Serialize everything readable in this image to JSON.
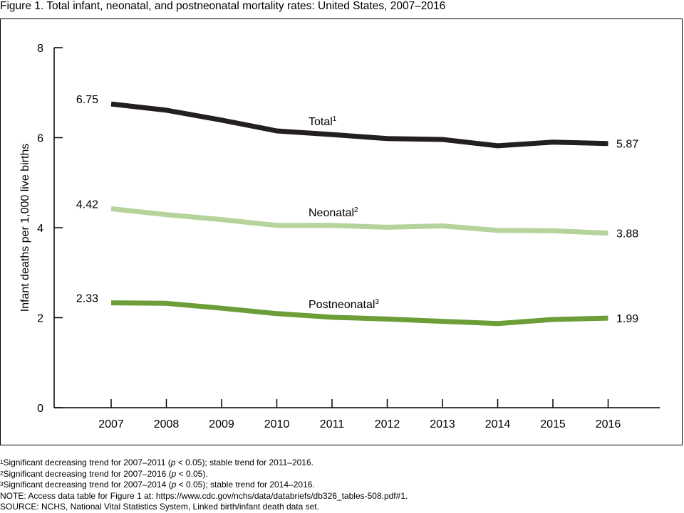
{
  "figure_title": "Figure 1. Total infant, neonatal, and postneonatal mortality rates: United States, 2007–2016",
  "chart_data": {
    "type": "line",
    "x": [
      2007,
      2008,
      2009,
      2010,
      2011,
      2012,
      2013,
      2014,
      2015,
      2016
    ],
    "ylabel": "Infant deaths per 1,000 live births",
    "xlabel": "",
    "ylim": [
      0,
      8
    ],
    "yticks": [
      0,
      2,
      4,
      6,
      8
    ],
    "grid": false,
    "series": [
      {
        "name": "Total",
        "footnote_marker": "1",
        "color": "#231f20",
        "values": [
          6.75,
          6.61,
          6.39,
          6.15,
          6.07,
          5.98,
          5.96,
          5.82,
          5.9,
          5.87
        ],
        "start_label": "6.75",
        "end_label": "5.87"
      },
      {
        "name": "Neonatal",
        "footnote_marker": "2",
        "color": "#b5d39b",
        "values": [
          4.42,
          4.29,
          4.18,
          4.05,
          4.05,
          4.01,
          4.04,
          3.94,
          3.93,
          3.88
        ],
        "start_label": "4.42",
        "end_label": "3.88"
      },
      {
        "name": "Postneonatal",
        "footnote_marker": "3",
        "color": "#6b9e37",
        "values": [
          2.33,
          2.32,
          2.21,
          2.09,
          2.01,
          1.97,
          1.92,
          1.87,
          1.96,
          1.99
        ],
        "start_label": "2.33",
        "end_label": "1.99"
      }
    ]
  },
  "footnotes": [
    {
      "marker": "1",
      "text_before": "Significant decreasing trend for 2007–2011 (",
      "italic": "p",
      "text_after": " < 0.05); stable trend for 2011–2016."
    },
    {
      "marker": "2",
      "text_before": "Significant decreasing trend for 2007–2016 (",
      "italic": "p",
      "text_after": " < 0.05)."
    },
    {
      "marker": "3",
      "text_before": "Significant decreasing trend for 2007–2014 (",
      "italic": "p",
      "text_after": " < 0.05); stable trend for 2014–2016."
    }
  ],
  "note": "NOTE: Access data table for Figure 1 at: https://www.cdc.gov/nchs/data/databriefs/db326_tables-508.pdf#1.",
  "source": "SOURCE: NCHS, National Vital Statistics System, Linked birth/infant death data set."
}
